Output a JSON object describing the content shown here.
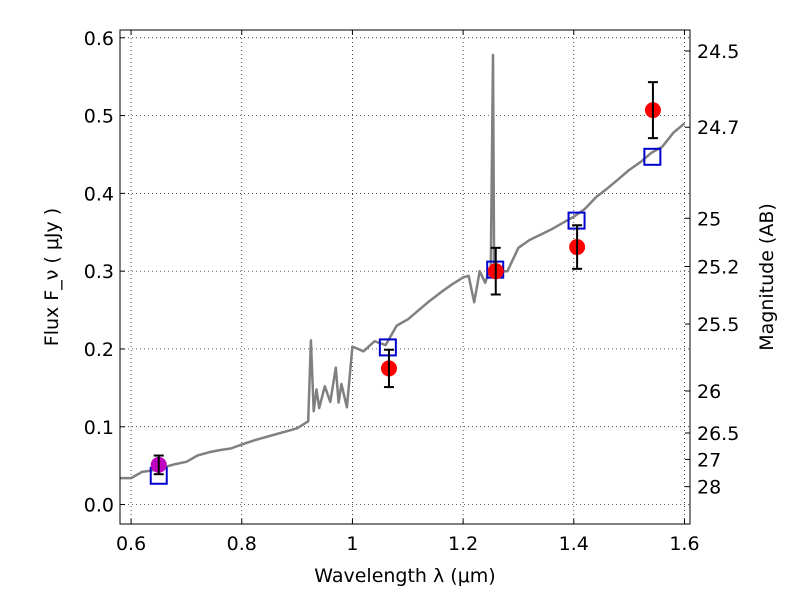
{
  "chart_data": {
    "type": "scatter",
    "xlabel": "Wavelength λ (μm)",
    "ylabel": "Flux F_ν ( μJy )",
    "ylabel_right": "Magnitude (AB)",
    "xlim": [
      0.58,
      1.61
    ],
    "ylim": [
      -0.025,
      0.61
    ],
    "grid": true,
    "x_ticks": [
      0.6,
      0.8,
      1.0,
      1.2,
      1.4,
      1.6
    ],
    "x_tick_labels": [
      "0.6",
      "0.8",
      "1",
      "1.2",
      "1.4",
      "1.6"
    ],
    "y_ticks": [
      0.0,
      0.1,
      0.2,
      0.3,
      0.4,
      0.5,
      0.6
    ],
    "y_tick_labels": [
      "0.0",
      "0.1",
      "0.2",
      "0.3",
      "0.4",
      "0.5",
      "0.6"
    ],
    "right_ticks": [
      {
        "label": "24.5",
        "flux": 0.583
      },
      {
        "label": "24.7",
        "flux": 0.485
      },
      {
        "label": "25",
        "flux": 0.368
      },
      {
        "label": "25.2",
        "flux": 0.306
      },
      {
        "label": "25.5",
        "flux": 0.232
      },
      {
        "label": "26",
        "flux": 0.146
      },
      {
        "label": "26.5",
        "flux": 0.092
      },
      {
        "label": "27",
        "flux": 0.058
      },
      {
        "label": "28",
        "flux": 0.023
      }
    ],
    "colors": {
      "spectrum": "#808080",
      "model": "#0000cc",
      "observed": "#ff0000",
      "observed_first": "#bf00bf",
      "errorbar": "#000000"
    },
    "series": [
      {
        "kind": "line",
        "x": [
          0.58,
          0.6,
          0.62,
          0.64,
          0.66,
          0.68,
          0.7,
          0.72,
          0.74,
          0.76,
          0.78,
          0.8,
          0.82,
          0.84,
          0.86,
          0.88,
          0.9,
          0.92,
          0.925,
          0.93,
          0.935,
          0.94,
          0.95,
          0.96,
          0.97,
          0.975,
          0.98,
          0.99,
          1.0,
          1.02,
          1.04,
          1.06,
          1.08,
          1.1,
          1.12,
          1.14,
          1.16,
          1.18,
          1.2,
          1.21,
          1.22,
          1.23,
          1.24,
          1.25,
          1.254,
          1.256,
          1.26,
          1.28,
          1.3,
          1.32,
          1.34,
          1.36,
          1.38,
          1.4,
          1.42,
          1.44,
          1.46,
          1.48,
          1.5,
          1.52,
          1.54,
          1.56,
          1.58,
          1.6
        ],
        "y": [
          0.034,
          0.034,
          0.042,
          0.044,
          0.048,
          0.052,
          0.055,
          0.063,
          0.067,
          0.07,
          0.072,
          0.077,
          0.082,
          0.086,
          0.09,
          0.094,
          0.098,
          0.107,
          0.211,
          0.12,
          0.148,
          0.124,
          0.152,
          0.132,
          0.176,
          0.131,
          0.155,
          0.125,
          0.203,
          0.197,
          0.21,
          0.205,
          0.23,
          0.238,
          0.25,
          0.262,
          0.273,
          0.283,
          0.292,
          0.294,
          0.26,
          0.3,
          0.285,
          0.306,
          0.578,
          0.31,
          0.3,
          0.3,
          0.33,
          0.34,
          0.347,
          0.354,
          0.362,
          0.37,
          0.38,
          0.395,
          0.406,
          0.418,
          0.43,
          0.44,
          0.452,
          0.46,
          0.478,
          0.49
        ]
      },
      {
        "kind": "squares",
        "x": [
          0.65,
          1.064,
          1.258,
          1.405,
          1.542
        ],
        "y": [
          0.037,
          0.202,
          0.302,
          0.365,
          0.447
        ]
      },
      {
        "kind": "points",
        "x": [
          0.65,
          1.066,
          1.259,
          1.406,
          1.543
        ],
        "y": [
          0.051,
          0.175,
          0.3,
          0.331,
          0.507
        ],
        "err": [
          0.012,
          0.024,
          0.03,
          0.028,
          0.036
        ]
      }
    ]
  }
}
